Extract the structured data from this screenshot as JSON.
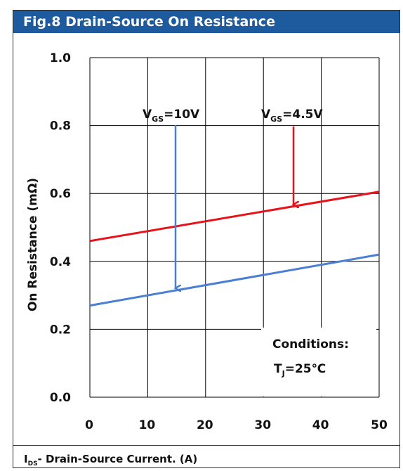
{
  "chart_data": {
    "type": "line",
    "title": "Fig.8 Drain-Source On Resistance",
    "xlabel_sym": "I",
    "xlabel_sub": "DS",
    "xlabel_rest": "- Drain-Source Current. (A)",
    "ylabel": "On Resistance (mΩ)",
    "xlim": [
      0,
      50
    ],
    "ylim": [
      0.0,
      1.0
    ],
    "x_ticks": [
      "0",
      "10",
      "20",
      "30",
      "40",
      "50"
    ],
    "y_ticks": [
      "0.0",
      "0.2",
      "0.4",
      "0.6",
      "0.8",
      "1.0"
    ],
    "grid": true,
    "series": [
      {
        "name_sym": "V",
        "name_sub": "GS",
        "name_rest": "=4.5V",
        "color": "#e8131a",
        "x": [
          0,
          50
        ],
        "y": [
          0.46,
          0.605
        ]
      },
      {
        "name_sym": "V",
        "name_sub": "GS",
        "name_rest": "=10V",
        "color": "#4a7fd3",
        "x": [
          0,
          50
        ],
        "y": [
          0.27,
          0.42
        ]
      }
    ],
    "conditions_label": "Conditions:",
    "conditions_sym": "T",
    "conditions_sub": "J",
    "conditions_rest": "=25℃"
  }
}
